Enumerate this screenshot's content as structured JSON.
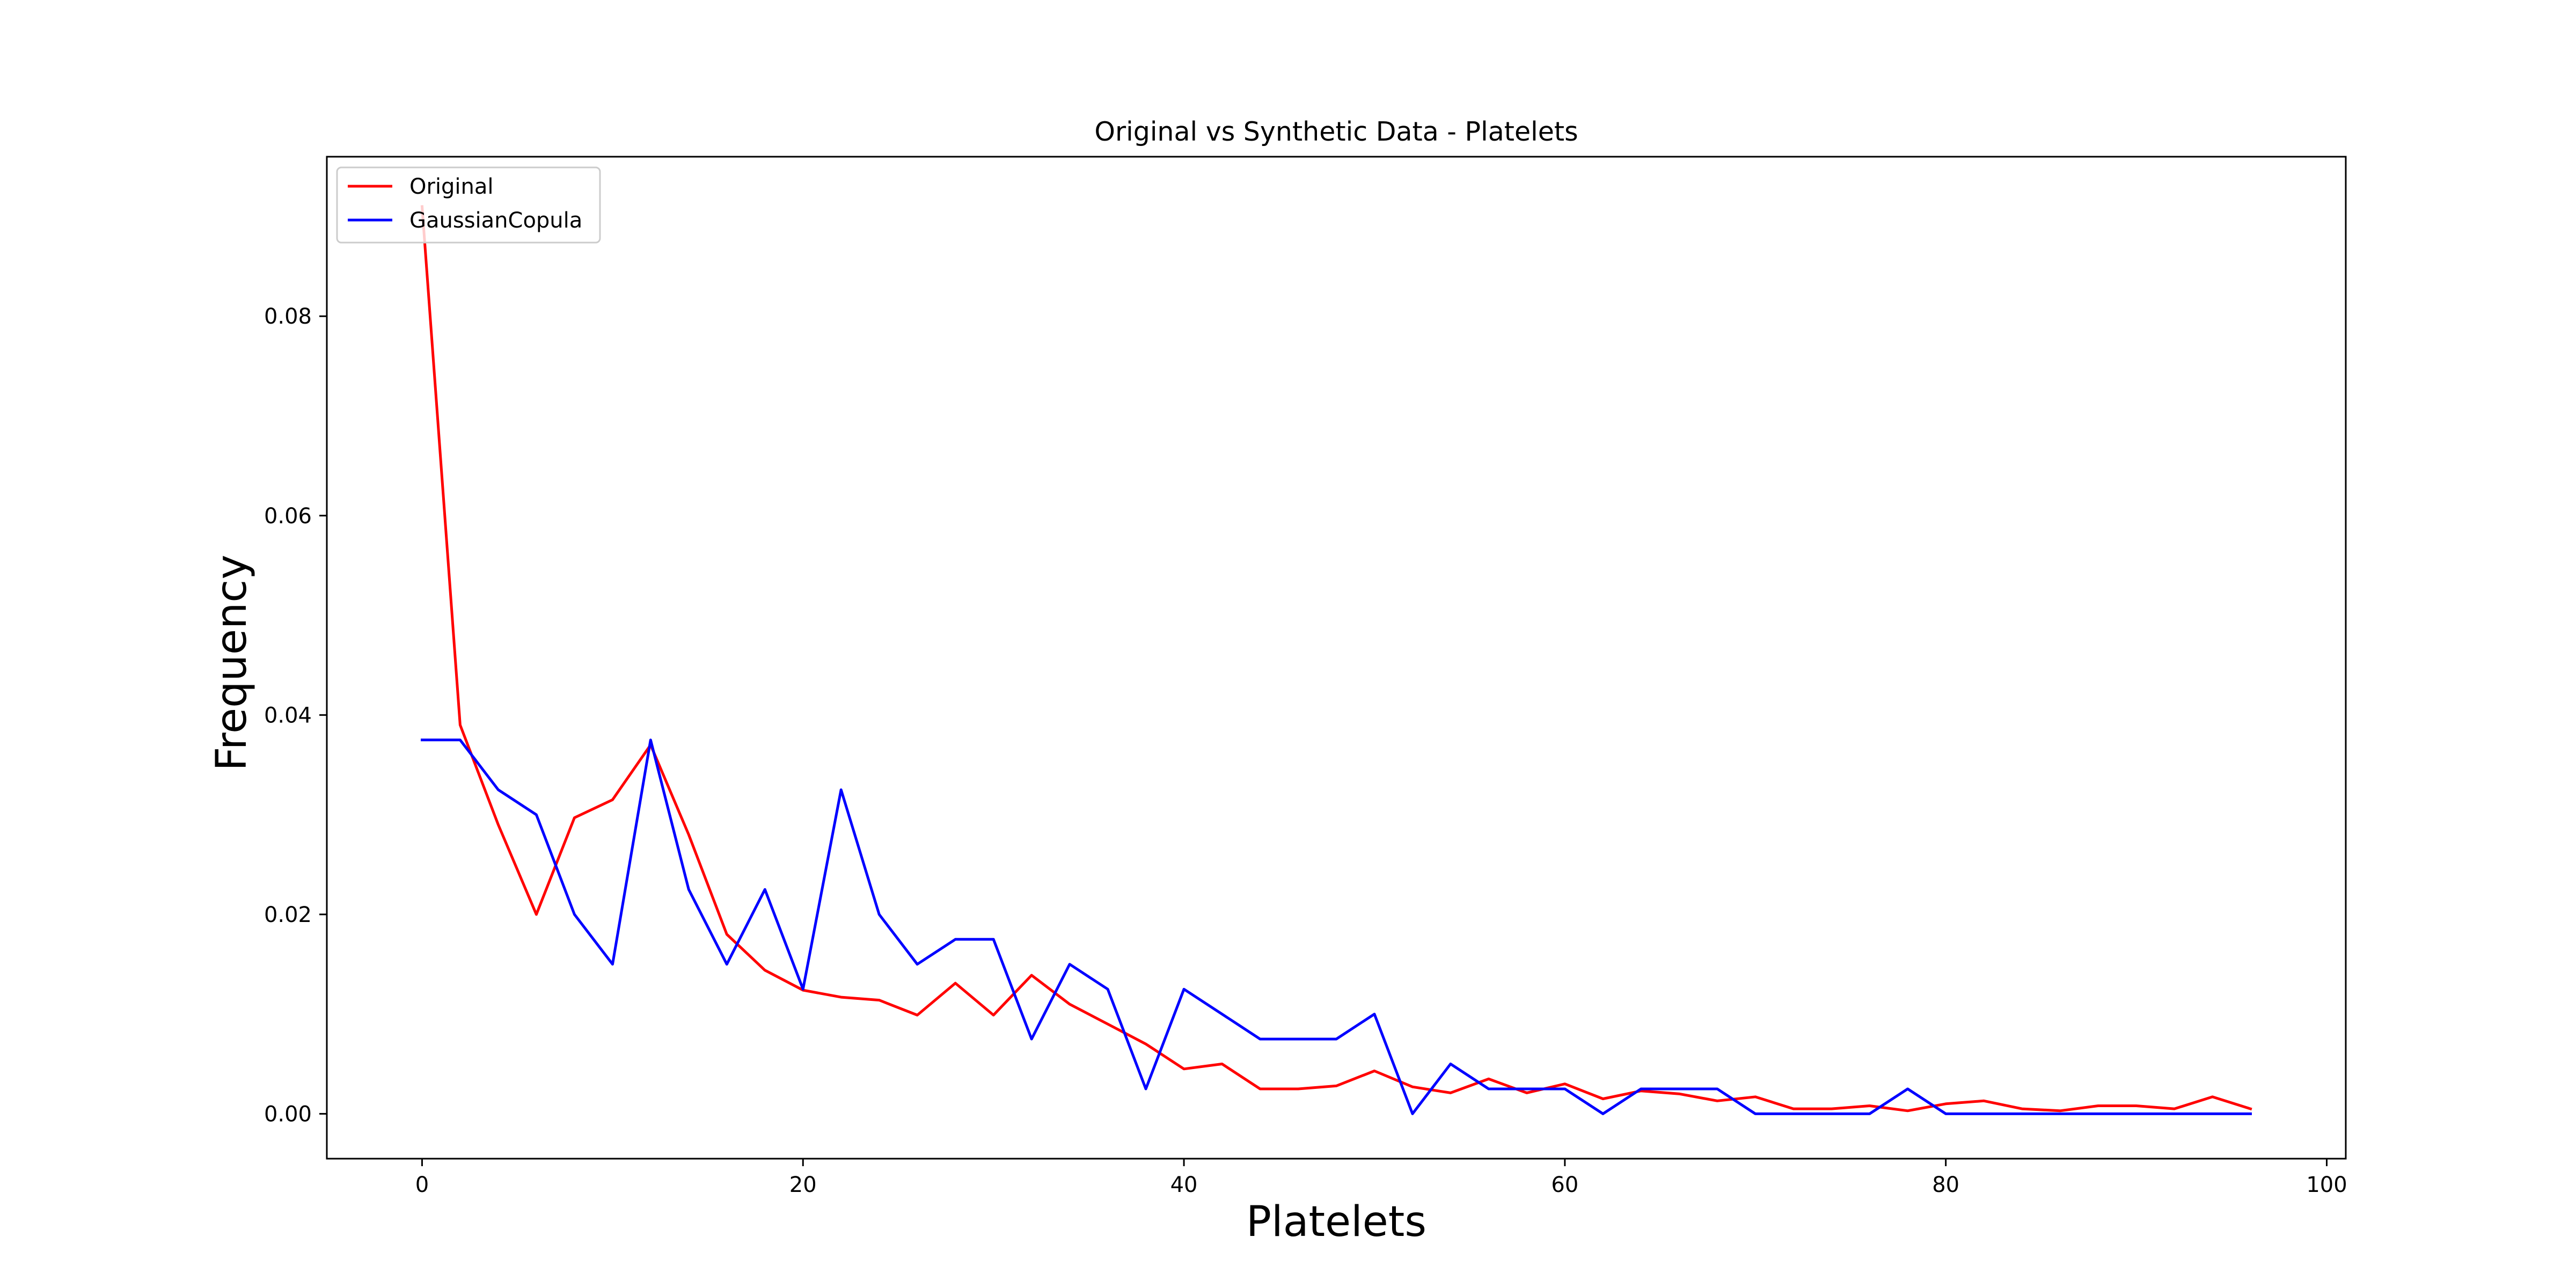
{
  "chart_data": {
    "type": "line",
    "title": "Original vs Synthetic Data - Platelets",
    "xlabel": "Platelets",
    "ylabel": "Frequency",
    "xlim": [
      -5,
      101
    ],
    "ylim": [
      -0.0045,
      0.096
    ],
    "xticks": [
      0,
      20,
      40,
      60,
      80,
      100
    ],
    "yticks": [
      0.0,
      0.02,
      0.04,
      0.06,
      0.08
    ],
    "xtick_labels": [
      "0",
      "20",
      "40",
      "60",
      "80",
      "100"
    ],
    "ytick_labels": [
      "0.00",
      "0.02",
      "0.04",
      "0.06",
      "0.08"
    ],
    "grid": false,
    "legend_position": "upper-left",
    "x": [
      0,
      2,
      4,
      6,
      8,
      10,
      12,
      14,
      16,
      18,
      20,
      22,
      24,
      26,
      28,
      30,
      32,
      34,
      36,
      38,
      40,
      42,
      44,
      46,
      48,
      50,
      52,
      54,
      56,
      58,
      60,
      62,
      64,
      66,
      68,
      70,
      72,
      74,
      76,
      78,
      80,
      82,
      84,
      86,
      88,
      90,
      92,
      94,
      96
    ],
    "series": [
      {
        "name": "Original",
        "color": "#ff0000",
        "values": [
          0.091,
          0.039,
          0.029,
          0.02,
          0.0297,
          0.0315,
          0.037,
          0.028,
          0.018,
          0.0144,
          0.0124,
          0.0117,
          0.0114,
          0.0099,
          0.0131,
          0.0099,
          0.0139,
          0.011,
          0.009,
          0.007,
          0.0045,
          0.005,
          0.0025,
          0.0025,
          0.0028,
          0.0043,
          0.0027,
          0.0021,
          0.0035,
          0.0021,
          0.003,
          0.0015,
          0.0023,
          0.002,
          0.0013,
          0.0017,
          0.0005,
          0.0005,
          0.0008,
          0.0003,
          0.001,
          0.0013,
          0.0005,
          0.0003,
          0.0008,
          0.0008,
          0.0005,
          0.0017,
          0.0005
        ]
      },
      {
        "name": "GaussianCopula",
        "color": "#0000ff",
        "values": [
          0.0375,
          0.0375,
          0.0325,
          0.03,
          0.02,
          0.015,
          0.0375,
          0.0225,
          0.015,
          0.0225,
          0.0125,
          0.0325,
          0.02,
          0.015,
          0.0175,
          0.0175,
          0.0075,
          0.015,
          0.0125,
          0.0025,
          0.0125,
          0.01,
          0.0075,
          0.0075,
          0.0075,
          0.01,
          0.0,
          0.005,
          0.0025,
          0.0025,
          0.0025,
          0.0,
          0.0025,
          0.0025,
          0.0025,
          0.0,
          0.0,
          0.0,
          0.0,
          0.0025,
          0.0,
          0.0,
          0.0,
          0.0,
          0.0,
          0.0,
          0.0,
          0.0,
          0.0
        ]
      }
    ]
  }
}
